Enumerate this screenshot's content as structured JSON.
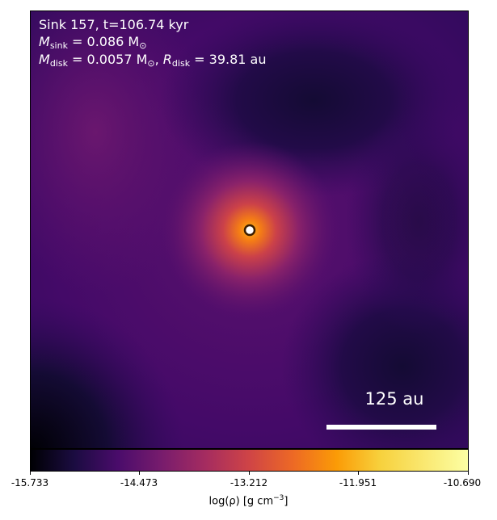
{
  "annotation": {
    "sink_line": "Sink 157, t=106.74 kyr",
    "msink_symbol": "M",
    "msink_sub": "sink",
    "msink_value": " = 0.086 M",
    "msink_unit_sub": "⊙",
    "mdisk_symbol": "M",
    "mdisk_sub": "disk",
    "mdisk_value": " = 0.0057 M",
    "mdisk_unit_sub": "⊙",
    "rdisk_separator": ", ",
    "rdisk_symbol": "R",
    "rdisk_sub": "disk",
    "rdisk_value": " = 39.81 au"
  },
  "scale_bar": {
    "label": "125 au"
  },
  "colorbar": {
    "colormap": "inferno",
    "label_prefix": "log(ρ) [g cm",
    "label_exponent": "−3",
    "label_suffix": "]",
    "range": [
      -15.733,
      -10.69
    ],
    "ticks": [
      "-15.733",
      "-14.473",
      "-13.212",
      "-11.951",
      "-10.690"
    ]
  },
  "colors": {
    "background_purple": "#4a0c6b",
    "dark_region": "#1a0b34",
    "core": "#f98e09",
    "sink_marker_fill": "#ffffff",
    "sink_marker_edge": "#3b1d00"
  }
}
